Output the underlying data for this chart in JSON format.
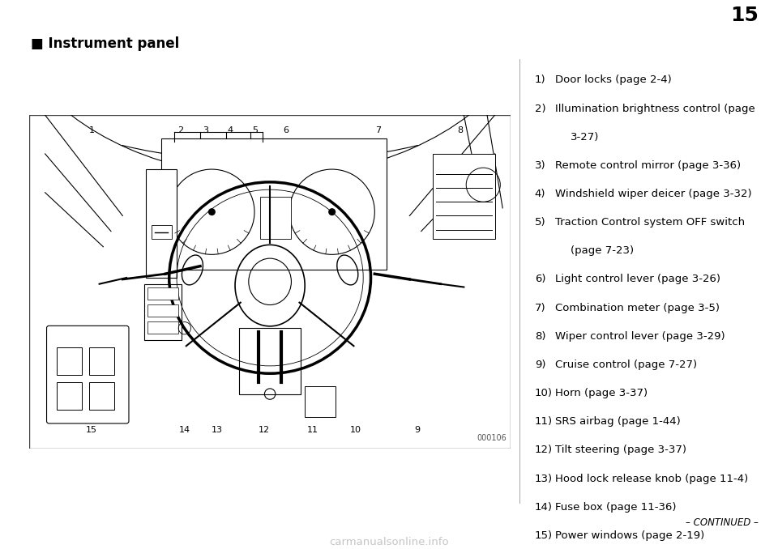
{
  "page_number": "15",
  "bg_color": "#ffffff",
  "title": "■ Instrument panel",
  "title_fontsize": 12,
  "image_code": "000106",
  "continued_text": "– CONTINUED –",
  "watermark_text": "carmanualsonline.info",
  "header_bar_color": "#c8c8c8",
  "items": [
    {
      "num": "1)",
      "text": "Door locks (page 2-4)"
    },
    {
      "num": "2)",
      "text": "Illumination brightness control (page\n    3-27)"
    },
    {
      "num": "3)",
      "text": "Remote control mirror (page 3-36)"
    },
    {
      "num": "4)",
      "text": "Windshield wiper deicer (page 3-32)"
    },
    {
      "num": "5)",
      "text": "Traction Control system OFF switch\n    (page 7-23)"
    },
    {
      "num": "6)",
      "text": "Light control lever (page 3-26)"
    },
    {
      "num": "7)",
      "text": "Combination meter (page 3-5)"
    },
    {
      "num": "8)",
      "text": "Wiper control lever (page 3-29)"
    },
    {
      "num": "9)",
      "text": "Cruise control (page 7-27)"
    },
    {
      "num": "10)",
      "text": "Horn (page 3-37)"
    },
    {
      "num": "11)",
      "text": "SRS airbag (page 1-44)"
    },
    {
      "num": "12)",
      "text": "Tilt steering (page 3-37)"
    },
    {
      "num": "13)",
      "text": "Hood lock release knob (page 11-4)"
    },
    {
      "num": "14)",
      "text": "Fuse box (page 11-36)"
    },
    {
      "num": "15)",
      "text": "Power windows (page 2-19)"
    }
  ]
}
